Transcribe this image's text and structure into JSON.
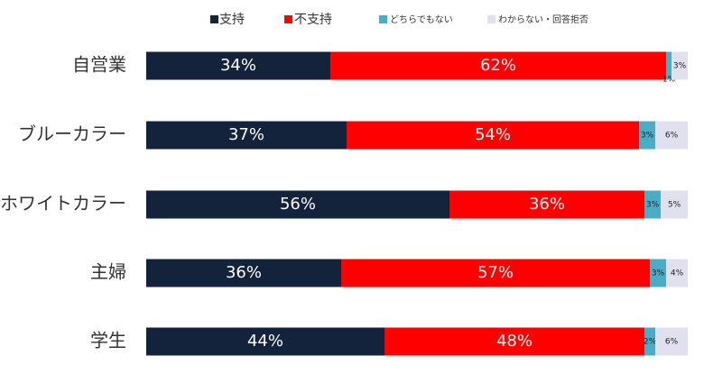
{
  "chart_data": {
    "type": "stacked-bar-horizontal",
    "categories": [
      "自営業",
      "ブルーカラー",
      "ホワイトカラー",
      "主婦",
      "学生"
    ],
    "xlim": [
      0,
      100
    ],
    "series": [
      {
        "name": "支持",
        "color": "#14233c",
        "values": [
          34,
          37,
          56,
          36,
          44
        ],
        "value_labels": [
          "34%",
          "37%",
          "56%",
          "36%",
          "44%"
        ]
      },
      {
        "name": "不支持",
        "color": "#ff0000",
        "values": [
          62,
          54,
          36,
          57,
          48
        ],
        "value_labels": [
          "62%",
          "54%",
          "36%",
          "57%",
          "48%"
        ]
      },
      {
        "name": "どちらでもない",
        "color": "#4bacc6",
        "values": [
          1,
          3,
          3,
          3,
          2
        ],
        "value_labels": [
          "1%",
          "3%",
          "3%",
          "3%",
          "2%"
        ]
      },
      {
        "name": "わからない・回答拒否",
        "color": "#e1e0ee",
        "values": [
          3,
          6,
          5,
          4,
          6
        ],
        "value_labels": [
          "3%",
          "6%",
          "5%",
          "4%",
          "6%"
        ]
      }
    ],
    "legend": "top"
  }
}
